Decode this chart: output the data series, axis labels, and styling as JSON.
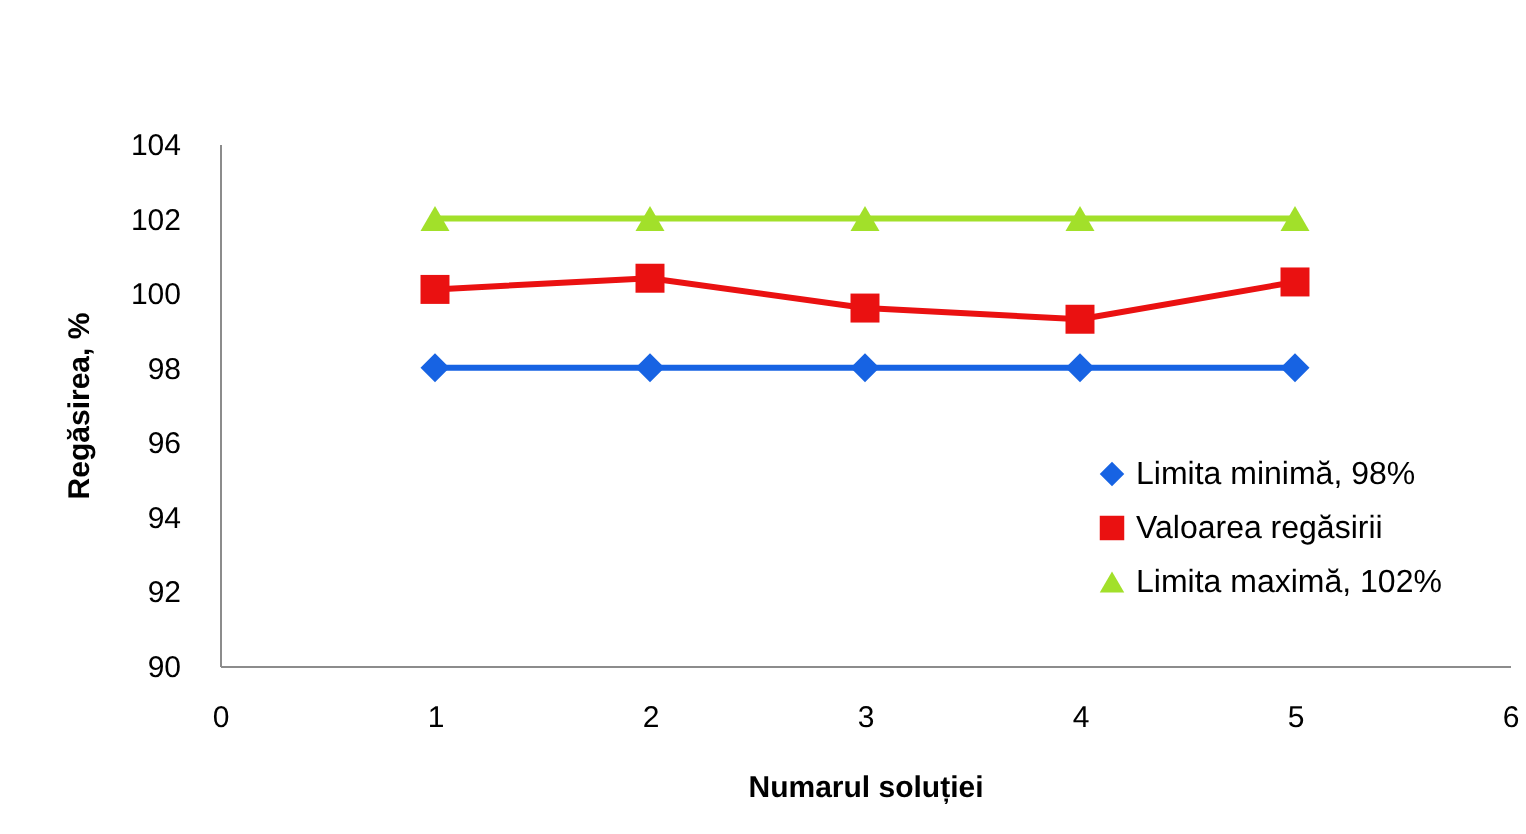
{
  "chart_data": {
    "type": "line",
    "xlabel": "Numarul soluției",
    "ylabel": "Regăsirea, %",
    "x": [
      1,
      2,
      3,
      4,
      5
    ],
    "xlim": [
      0,
      6
    ],
    "xticks": [
      0,
      1,
      2,
      3,
      4,
      5,
      6
    ],
    "ylim": [
      90,
      104
    ],
    "yticks": [
      90,
      92,
      94,
      96,
      98,
      100,
      102,
      104
    ],
    "grid": false,
    "legend": "bottom right",
    "line_style": "solid",
    "series": [
      {
        "name": "Limita minimă, 98%",
        "color": "#1763e3",
        "marker": "diamond",
        "values": [
          98,
          98,
          98,
          98,
          98
        ]
      },
      {
        "name": "Valoarea regăsirii",
        "color": "#ea1111",
        "marker": "square",
        "values": [
          100.1,
          100.4,
          99.6,
          99.3,
          100.3
        ]
      },
      {
        "name": "Limita maximă, 102%",
        "color": "#a2e02a",
        "marker": "triangle",
        "values": [
          102,
          102,
          102,
          102,
          102
        ]
      }
    ]
  }
}
